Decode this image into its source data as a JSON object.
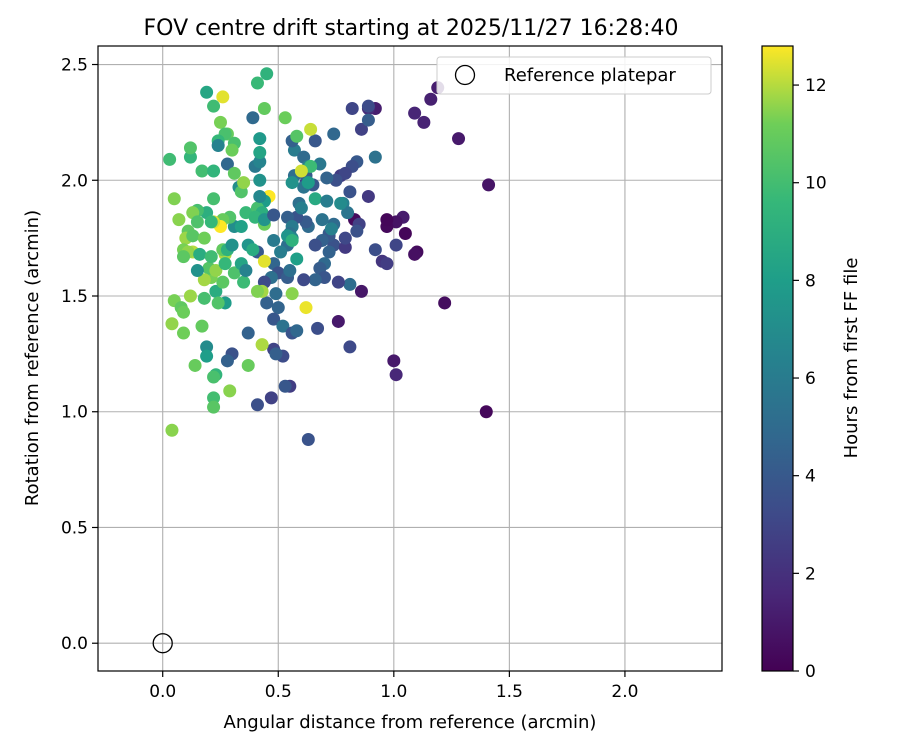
{
  "chart_data": {
    "type": "scatter",
    "title": "FOV centre drift starting at 2025/11/27 16:28:40",
    "xlabel": "Angular distance from reference (arcmin)",
    "ylabel": "Rotation from reference (arcmin)",
    "xlim": [
      -0.28,
      2.42
    ],
    "ylim": [
      -0.12,
      2.58
    ],
    "xticks": [
      0.0,
      0.5,
      1.0,
      1.5,
      2.0
    ],
    "yticks": [
      0.0,
      0.5,
      1.0,
      1.5,
      2.0,
      2.5
    ],
    "grid": true,
    "legend": {
      "location": "upper-right",
      "entries": [
        "Reference platepar"
      ]
    },
    "reference_point": {
      "label": "Reference platepar",
      "x": 0.0,
      "y": 0.0
    },
    "colorbar": {
      "label": "Hours from first FF file",
      "colormap": "viridis",
      "range": [
        0,
        12.8
      ],
      "ticks": [
        0,
        2,
        4,
        6,
        8,
        10,
        12
      ]
    },
    "points": [
      [
        1.4,
        1.0,
        0.3
      ],
      [
        1.22,
        1.47,
        0.5
      ],
      [
        1.41,
        1.98,
        0.8
      ],
      [
        1.28,
        2.18,
        1.0
      ],
      [
        1.19,
        2.4,
        1.2
      ],
      [
        1.16,
        2.35,
        1.3
      ],
      [
        1.13,
        2.25,
        1.4
      ],
      [
        1.09,
        2.29,
        1.5
      ],
      [
        1.1,
        1.69,
        0.4
      ],
      [
        1.09,
        1.68,
        0.6
      ],
      [
        1.05,
        1.77,
        0.2
      ],
      [
        1.04,
        1.84,
        1.1
      ],
      [
        1.01,
        1.82,
        0.7
      ],
      [
        0.97,
        1.8,
        0.3
      ],
      [
        0.97,
        1.83,
        0.2
      ],
      [
        1.0,
        1.22,
        1.0
      ],
      [
        1.01,
        1.16,
        1.6
      ],
      [
        0.92,
        2.31,
        1.2
      ],
      [
        0.89,
        2.31,
        1.8
      ],
      [
        0.86,
        1.52,
        0.9
      ],
      [
        0.83,
        1.83,
        0.4
      ],
      [
        0.76,
        1.39,
        1.0
      ],
      [
        0.95,
        1.65,
        2.2
      ],
      [
        0.97,
        1.64,
        2.6
      ],
      [
        1.01,
        1.72,
        3.0
      ],
      [
        0.92,
        1.7,
        3.4
      ],
      [
        0.89,
        1.93,
        2.4
      ],
      [
        0.85,
        1.81,
        2.8
      ],
      [
        0.84,
        1.78,
        3.6
      ],
      [
        0.81,
        1.28,
        3.2
      ],
      [
        0.86,
        2.22,
        2.8
      ],
      [
        0.82,
        2.31,
        3.0
      ],
      [
        0.89,
        2.32,
        3.3
      ],
      [
        0.89,
        2.26,
        4.2
      ],
      [
        0.92,
        2.1,
        5.4
      ],
      [
        0.84,
        2.08,
        4.0
      ],
      [
        0.82,
        2.06,
        3.4
      ],
      [
        0.77,
        2.02,
        2.5
      ],
      [
        0.79,
        2.03,
        3.0
      ],
      [
        0.75,
        2.0,
        3.5
      ],
      [
        0.71,
        2.01,
        4.6
      ],
      [
        0.65,
        1.98,
        3.9
      ],
      [
        0.62,
        1.99,
        2.8
      ],
      [
        0.62,
        2.02,
        4.1
      ],
      [
        0.57,
        2.02,
        5.2
      ],
      [
        0.57,
        2.13,
        6.0
      ],
      [
        0.56,
        2.17,
        4.4
      ],
      [
        0.61,
        2.1,
        5.0
      ],
      [
        0.68,
        2.07,
        5.8
      ],
      [
        0.63,
        2.06,
        6.4
      ],
      [
        0.66,
        2.17,
        3.9
      ],
      [
        0.74,
        2.2,
        4.8
      ],
      [
        0.81,
        1.55,
        5.1
      ],
      [
        0.81,
        1.95,
        3.7
      ],
      [
        0.78,
        1.9,
        6.2
      ],
      [
        0.8,
        1.86,
        5.6
      ],
      [
        0.74,
        1.81,
        5.0
      ],
      [
        0.72,
        1.77,
        4.3
      ],
      [
        0.74,
        1.72,
        3.6
      ],
      [
        0.72,
        1.69,
        4.5
      ],
      [
        0.7,
        1.64,
        4.9
      ],
      [
        0.68,
        1.62,
        4.2
      ],
      [
        0.7,
        1.58,
        3.8
      ],
      [
        0.66,
        1.57,
        4.6
      ],
      [
        0.61,
        1.57,
        3.2
      ],
      [
        0.76,
        1.56,
        2.9
      ],
      [
        0.79,
        1.71,
        2.4
      ],
      [
        0.79,
        1.75,
        3.1
      ],
      [
        0.72,
        1.76,
        3.9
      ],
      [
        0.69,
        1.74,
        4.4
      ],
      [
        0.66,
        1.72,
        3.5
      ],
      [
        0.63,
        1.8,
        5.0
      ],
      [
        0.62,
        1.82,
        4.1
      ],
      [
        0.58,
        1.84,
        3.7
      ],
      [
        0.54,
        1.84,
        4.3
      ],
      [
        0.59,
        1.9,
        5.3
      ],
      [
        0.6,
        1.88,
        6.2
      ],
      [
        0.56,
        1.8,
        5.9
      ],
      [
        0.55,
        1.77,
        5.4
      ],
      [
        0.56,
        1.75,
        6.6
      ],
      [
        0.54,
        1.72,
        5.2
      ],
      [
        0.51,
        1.69,
        6.1
      ],
      [
        0.48,
        1.64,
        4.7
      ],
      [
        0.5,
        1.6,
        3.6
      ],
      [
        0.54,
        1.58,
        4.2
      ],
      [
        0.47,
        1.58,
        5.3
      ],
      [
        0.44,
        1.56,
        3.3
      ],
      [
        0.45,
        1.47,
        4.4
      ],
      [
        0.41,
        1.69,
        4.0
      ],
      [
        0.49,
        1.51,
        5.1
      ],
      [
        0.5,
        1.45,
        4.6
      ],
      [
        0.48,
        1.4,
        3.9
      ],
      [
        0.52,
        1.37,
        5.5
      ],
      [
        0.56,
        1.34,
        3.7
      ],
      [
        0.58,
        1.35,
        4.8
      ],
      [
        0.67,
        1.36,
        3.4
      ],
      [
        0.52,
        1.24,
        3.3
      ],
      [
        0.48,
        1.27,
        2.9
      ],
      [
        0.55,
        1.11,
        2.6
      ],
      [
        0.53,
        1.11,
        3.9
      ],
      [
        0.47,
        1.06,
        2.8
      ],
      [
        0.41,
        1.03,
        3.5
      ],
      [
        0.63,
        0.88,
        3.7
      ],
      [
        0.37,
        1.34,
        4.5
      ],
      [
        0.3,
        1.25,
        3.6
      ],
      [
        0.28,
        1.22,
        4.4
      ],
      [
        0.19,
        1.28,
        6.9
      ],
      [
        0.19,
        1.24,
        8.0
      ],
      [
        0.23,
        1.16,
        9.4
      ],
      [
        0.22,
        1.15,
        10.2
      ],
      [
        0.14,
        1.2,
        11.0
      ],
      [
        0.29,
        1.09,
        11.5
      ],
      [
        0.22,
        1.06,
        10.0
      ],
      [
        0.22,
        1.02,
        10.6
      ],
      [
        0.04,
        0.92,
        11.5
      ],
      [
        0.09,
        1.34,
        11.2
      ],
      [
        0.04,
        1.38,
        11.6
      ],
      [
        0.17,
        1.37,
        10.9
      ],
      [
        0.05,
        1.48,
        11.3
      ],
      [
        0.08,
        1.45,
        10.8
      ],
      [
        0.09,
        1.43,
        11.1
      ],
      [
        0.12,
        1.5,
        11.7
      ],
      [
        0.18,
        1.49,
        10.1
      ],
      [
        0.23,
        1.52,
        8.9
      ],
      [
        0.27,
        1.47,
        7.9
      ],
      [
        0.24,
        1.47,
        10.4
      ],
      [
        0.26,
        1.56,
        10.7
      ],
      [
        0.21,
        1.58,
        11.3
      ],
      [
        0.2,
        1.62,
        10.5
      ],
      [
        0.23,
        1.61,
        11.6
      ],
      [
        0.18,
        1.57,
        11.8
      ],
      [
        0.27,
        1.68,
        11.9
      ],
      [
        0.26,
        1.7,
        10.9
      ],
      [
        0.28,
        1.7,
        9.2
      ],
      [
        0.3,
        1.72,
        7.3
      ],
      [
        0.27,
        1.64,
        9.6
      ],
      [
        0.31,
        1.6,
        10.3
      ],
      [
        0.34,
        1.64,
        8.4
      ],
      [
        0.35,
        1.56,
        9.8
      ],
      [
        0.36,
        1.61,
        6.4
      ],
      [
        0.37,
        1.72,
        7.5
      ],
      [
        0.39,
        1.7,
        8.8
      ],
      [
        0.31,
        1.8,
        7.0
      ],
      [
        0.34,
        1.8,
        8.2
      ],
      [
        0.36,
        1.86,
        9.7
      ],
      [
        0.29,
        1.84,
        10.4
      ],
      [
        0.26,
        1.83,
        11.0
      ],
      [
        0.25,
        1.8,
        12.8
      ],
      [
        0.22,
        1.82,
        12.3
      ],
      [
        0.19,
        1.86,
        9.0
      ],
      [
        0.15,
        1.87,
        10.1
      ],
      [
        0.13,
        1.86,
        11.4
      ],
      [
        0.11,
        1.78,
        10.8
      ],
      [
        0.1,
        1.75,
        11.7
      ],
      [
        0.13,
        1.76,
        10.6
      ],
      [
        0.13,
        1.69,
        12.0
      ],
      [
        0.09,
        1.7,
        11.3
      ],
      [
        0.11,
        1.69,
        11.6
      ],
      [
        0.09,
        1.67,
        10.7
      ],
      [
        0.15,
        1.61,
        7.3
      ],
      [
        0.16,
        1.68,
        8.9
      ],
      [
        0.21,
        1.67,
        9.9
      ],
      [
        0.21,
        1.82,
        9.6
      ],
      [
        0.18,
        1.75,
        11.2
      ],
      [
        0.15,
        1.82,
        10.3
      ],
      [
        0.22,
        1.92,
        10.1
      ],
      [
        0.07,
        1.83,
        11.5
      ],
      [
        0.05,
        1.92,
        11.4
      ],
      [
        0.03,
        2.09,
        9.9
      ],
      [
        0.12,
        2.1,
        9.5
      ],
      [
        0.12,
        2.14,
        10.4
      ],
      [
        0.17,
        2.04,
        10.0
      ],
      [
        0.22,
        2.04,
        9.4
      ],
      [
        0.22,
        2.32,
        9.9
      ],
      [
        0.19,
        2.38,
        8.5
      ],
      [
        0.26,
        2.36,
        12.5
      ],
      [
        0.25,
        2.25,
        11.3
      ],
      [
        0.28,
        2.2,
        11.0
      ],
      [
        0.27,
        2.2,
        10.2
      ],
      [
        0.24,
        2.17,
        9.6
      ],
      [
        0.24,
        2.15,
        6.4
      ],
      [
        0.28,
        2.07,
        4.8
      ],
      [
        0.31,
        2.16,
        10.2
      ],
      [
        0.3,
        2.13,
        11.1
      ],
      [
        0.31,
        2.03,
        10.8
      ],
      [
        0.33,
        1.97,
        7.1
      ],
      [
        0.34,
        1.95,
        10.4
      ],
      [
        0.35,
        1.99,
        11.6
      ],
      [
        0.42,
        2.0,
        7.3
      ],
      [
        0.4,
        2.06,
        5.8
      ],
      [
        0.42,
        2.08,
        6.5
      ],
      [
        0.42,
        2.12,
        8.4
      ],
      [
        0.42,
        2.18,
        7.7
      ],
      [
        0.41,
        2.42,
        9.7
      ],
      [
        0.45,
        2.46,
        9.3
      ],
      [
        0.44,
        2.31,
        10.9
      ],
      [
        0.39,
        2.27,
        4.9
      ],
      [
        0.53,
        2.27,
        11.1
      ],
      [
        0.58,
        2.19,
        10.5
      ],
      [
        0.64,
        2.22,
        12.2
      ],
      [
        0.64,
        2.06,
        9.8
      ],
      [
        0.6,
        2.04,
        12.3
      ],
      [
        0.61,
        1.97,
        5.6
      ],
      [
        0.46,
        1.93,
        12.8
      ],
      [
        0.44,
        1.91,
        7.9
      ],
      [
        0.41,
        1.88,
        10.1
      ],
      [
        0.43,
        1.86,
        9.0
      ],
      [
        0.4,
        1.84,
        9.5
      ],
      [
        0.44,
        1.81,
        11.1
      ],
      [
        0.44,
        1.83,
        7.4
      ],
      [
        0.42,
        1.93,
        6.7
      ],
      [
        0.48,
        1.85,
        3.9
      ],
      [
        0.48,
        1.74,
        5.9
      ],
      [
        0.54,
        1.76,
        7.5
      ],
      [
        0.56,
        1.74,
        9.2
      ],
      [
        0.58,
        1.66,
        8.1
      ],
      [
        0.44,
        1.65,
        12.5
      ],
      [
        0.43,
        1.52,
        11.8
      ],
      [
        0.56,
        1.51,
        11.5
      ],
      [
        0.62,
        1.45,
        12.6
      ],
      [
        0.41,
        1.52,
        11.4
      ],
      [
        0.43,
        1.29,
        11.9
      ],
      [
        0.37,
        1.2,
        11.0
      ],
      [
        0.49,
        1.25,
        4.3
      ],
      [
        0.55,
        1.61,
        5.2
      ],
      [
        0.56,
        1.99,
        7.3
      ],
      [
        0.63,
        1.99,
        7.9
      ],
      [
        0.66,
        1.92,
        8.7
      ],
      [
        0.71,
        1.91,
        6.1
      ],
      [
        0.77,
        1.9,
        6.9
      ],
      [
        0.69,
        1.83,
        5.5
      ],
      [
        0.73,
        1.79,
        6.3
      ]
    ]
  }
}
